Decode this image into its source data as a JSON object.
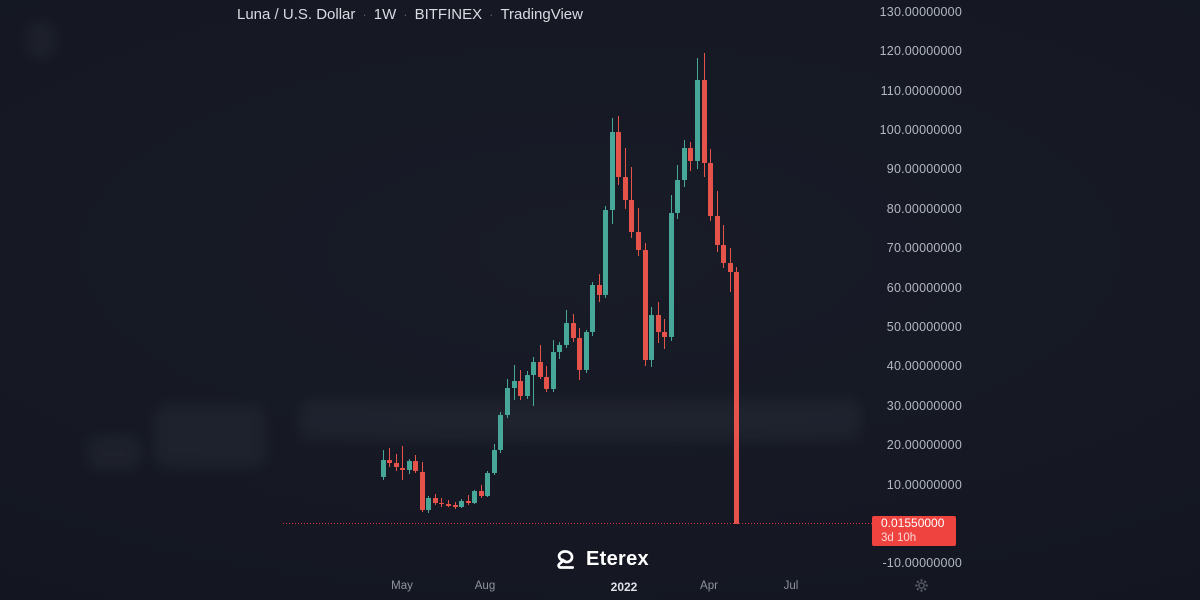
{
  "header": {
    "symbol": "Luna / U.S. Dollar",
    "interval": "1W",
    "exchange": "BITFINEX",
    "platform": "TradingView",
    "separator": "·"
  },
  "logo": {
    "name": "Eterex"
  },
  "icons": {
    "gear": "settings-gear",
    "logo_mark": "eterex-mark"
  },
  "chart_data": {
    "type": "candlestick",
    "title": "Luna / U.S. Dollar",
    "interval": "1W",
    "exchange": "BITFINEX",
    "platform": "TradingView",
    "legend_position": "top-left",
    "grid": false,
    "up_color": "#47a899",
    "down_color": "#e5534b",
    "badge_color": "#ef4340",
    "price_line_color": "#f23645",
    "price_line_style": "dotted",
    "last_price": 0.0155,
    "last_price_label": "0.01550000",
    "countdown": "3d 10h",
    "y_axis": {
      "min": -10,
      "max": 130,
      "tick_step": 10,
      "tick_labels": [
        "130.00000000",
        "120.00000000",
        "110.00000000",
        "100.00000000",
        "90.00000000",
        "80.00000000",
        "70.00000000",
        "60.00000000",
        "50.00000000",
        "40.00000000",
        "30.00000000",
        "20.00000000",
        "10.00000000",
        "-10.00000000"
      ]
    },
    "x_axis": {
      "ticks": [
        {
          "label": "May",
          "major": false
        },
        {
          "label": "Aug",
          "major": false
        },
        {
          "label": "2022",
          "major": true
        },
        {
          "label": "Apr",
          "major": false
        },
        {
          "label": "Jul",
          "major": false
        }
      ]
    },
    "candles_format": [
      "open",
      "high",
      "low",
      "close"
    ],
    "candles": [
      [
        12.0,
        18.8,
        11.0,
        16.3
      ],
      [
        16.3,
        19.2,
        14.5,
        15.4
      ],
      [
        15.4,
        17.8,
        13.4,
        14.3
      ],
      [
        14.3,
        19.8,
        11.2,
        13.8
      ],
      [
        13.8,
        16.6,
        12.6,
        15.9
      ],
      [
        15.9,
        17.4,
        12.9,
        13.3
      ],
      [
        13.3,
        15.6,
        2.9,
        3.6
      ],
      [
        3.6,
        7.2,
        2.8,
        6.5
      ],
      [
        6.5,
        7.6,
        4.8,
        5.4
      ],
      [
        5.4,
        6.6,
        4.4,
        5.0
      ],
      [
        5.0,
        6.0,
        4.2,
        4.7
      ],
      [
        4.7,
        5.5,
        3.7,
        4.3
      ],
      [
        4.3,
        6.3,
        4.0,
        5.9
      ],
      [
        5.9,
        7.4,
        4.8,
        5.2
      ],
      [
        5.2,
        8.7,
        5.0,
        8.3
      ],
      [
        8.3,
        9.9,
        6.6,
        7.1
      ],
      [
        7.1,
        13.4,
        6.9,
        12.9
      ],
      [
        12.9,
        20.3,
        12.4,
        18.8
      ],
      [
        18.8,
        28.4,
        18.0,
        27.7
      ],
      [
        27.7,
        36.8,
        26.8,
        34.5
      ],
      [
        34.5,
        40.4,
        31.5,
        36.4
      ],
      [
        36.4,
        39.1,
        31.4,
        32.4
      ],
      [
        32.4,
        38.9,
        31.8,
        37.8
      ],
      [
        37.8,
        42.3,
        29.9,
        41.1
      ],
      [
        41.1,
        45.4,
        36.9,
        37.3
      ],
      [
        37.3,
        40.2,
        33.6,
        34.2
      ],
      [
        34.2,
        46.7,
        33.5,
        43.7
      ],
      [
        43.7,
        46.2,
        41.9,
        45.4
      ],
      [
        45.4,
        54.3,
        44.6,
        51.0
      ],
      [
        51.0,
        53.2,
        46.1,
        47.2
      ],
      [
        47.2,
        49.8,
        36.5,
        39.1
      ],
      [
        39.1,
        49.3,
        38.4,
        48.7
      ],
      [
        48.7,
        61.5,
        47.6,
        60.7
      ],
      [
        60.7,
        63.4,
        56.3,
        58.1
      ],
      [
        58.1,
        80.6,
        57.2,
        79.7
      ],
      [
        79.7,
        103.0,
        76.2,
        99.5
      ],
      [
        99.5,
        103.5,
        85.9,
        88.1
      ],
      [
        88.1,
        95.4,
        79.9,
        82.2
      ],
      [
        82.2,
        90.6,
        72.6,
        74.1
      ],
      [
        74.1,
        80.2,
        67.9,
        69.5
      ],
      [
        69.5,
        71.3,
        40.2,
        41.6
      ],
      [
        41.6,
        55.1,
        39.8,
        53.0
      ],
      [
        53.0,
        56.4,
        45.9,
        48.7
      ],
      [
        48.7,
        52.1,
        44.3,
        47.5
      ],
      [
        47.5,
        83.5,
        46.4,
        78.9
      ],
      [
        78.9,
        91.1,
        77.4,
        87.3
      ],
      [
        87.3,
        97.5,
        85.6,
        95.4
      ],
      [
        95.4,
        97.0,
        89.6,
        92.1
      ],
      [
        92.1,
        118.3,
        90.1,
        112.7
      ],
      [
        112.7,
        119.5,
        88.0,
        91.6
      ],
      [
        91.6,
        95.1,
        76.8,
        78.2
      ],
      [
        78.2,
        84.6,
        69.1,
        70.9
      ],
      [
        70.9,
        75.8,
        64.8,
        66.3
      ],
      [
        66.3,
        70.1,
        58.8,
        63.9
      ],
      [
        63.9,
        65.2,
        0.01,
        0.0155
      ]
    ]
  }
}
